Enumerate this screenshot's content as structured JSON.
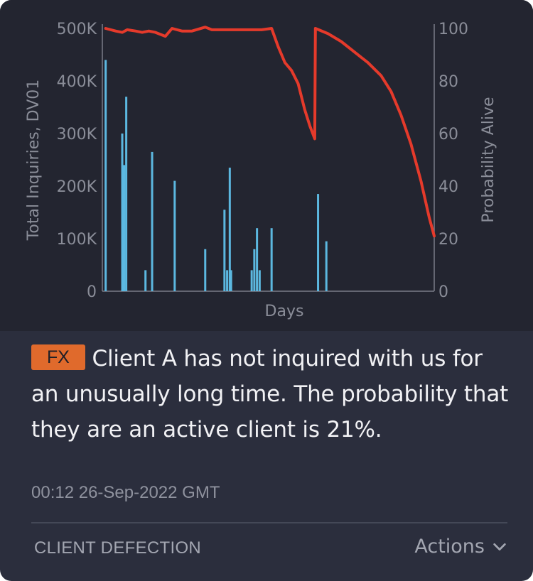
{
  "chart_data": {
    "type": "bar+line",
    "xlabel": "Days",
    "ylabel_left": "Total Inquiries, DV01",
    "ylabel_right": "Probability Alive",
    "y_left_ticks": [
      "500K",
      "400K",
      "300K",
      "200K",
      "100K",
      "0"
    ],
    "y_right_ticks": [
      "100",
      "80",
      "60",
      "40",
      "20",
      "0"
    ],
    "y_left_range": [
      0,
      500000
    ],
    "y_right_range": [
      0,
      100
    ],
    "x_range": [
      0,
      100
    ],
    "bars_series": {
      "color": "#5cb8e0",
      "points": [
        {
          "x": 1.0,
          "y": 440000
        },
        {
          "x": 6.0,
          "y": 300000
        },
        {
          "x": 6.6,
          "y": 240000
        },
        {
          "x": 7.2,
          "y": 370000
        },
        {
          "x": 13.0,
          "y": 40000
        },
        {
          "x": 15.0,
          "y": 265000
        },
        {
          "x": 21.8,
          "y": 210000
        },
        {
          "x": 31.0,
          "y": 80000
        },
        {
          "x": 36.8,
          "y": 155000
        },
        {
          "x": 37.6,
          "y": 40000
        },
        {
          "x": 38.4,
          "y": 235000
        },
        {
          "x": 38.8,
          "y": 40000
        },
        {
          "x": 45.0,
          "y": 40000
        },
        {
          "x": 45.8,
          "y": 80000
        },
        {
          "x": 46.6,
          "y": 120000
        },
        {
          "x": 47.4,
          "y": 40000
        },
        {
          "x": 51.0,
          "y": 120000
        },
        {
          "x": 65.0,
          "y": 185000
        },
        {
          "x": 67.5,
          "y": 95000
        }
      ]
    },
    "line_series": {
      "color": "#e53a2b",
      "points": [
        {
          "x": 1,
          "y": 100
        },
        {
          "x": 4,
          "y": 99
        },
        {
          "x": 6,
          "y": 98.5
        },
        {
          "x": 7.5,
          "y": 99.5
        },
        {
          "x": 10,
          "y": 99
        },
        {
          "x": 12,
          "y": 98.5
        },
        {
          "x": 14,
          "y": 99
        },
        {
          "x": 16,
          "y": 98.5
        },
        {
          "x": 19,
          "y": 97
        },
        {
          "x": 21,
          "y": 100
        },
        {
          "x": 24,
          "y": 99
        },
        {
          "x": 27,
          "y": 99
        },
        {
          "x": 31,
          "y": 100.5
        },
        {
          "x": 33,
          "y": 99.5
        },
        {
          "x": 36,
          "y": 99.5
        },
        {
          "x": 40,
          "y": 99.5
        },
        {
          "x": 45,
          "y": 99.5
        },
        {
          "x": 48,
          "y": 99.5
        },
        {
          "x": 51,
          "y": 100
        },
        {
          "x": 53,
          "y": 93
        },
        {
          "x": 55,
          "y": 87
        },
        {
          "x": 57,
          "y": 84
        },
        {
          "x": 59,
          "y": 79
        },
        {
          "x": 61,
          "y": 69
        },
        {
          "x": 62.5,
          "y": 63
        },
        {
          "x": 64,
          "y": 58
        },
        {
          "x": 64.2,
          "y": 100
        },
        {
          "x": 68,
          "y": 98
        },
        {
          "x": 72,
          "y": 95
        },
        {
          "x": 76,
          "y": 91
        },
        {
          "x": 80,
          "y": 87
        },
        {
          "x": 84,
          "y": 82
        },
        {
          "x": 87,
          "y": 76
        },
        {
          "x": 90,
          "y": 67
        },
        {
          "x": 93,
          "y": 56
        },
        {
          "x": 96,
          "y": 42
        },
        {
          "x": 98.5,
          "y": 28
        },
        {
          "x": 100,
          "y": 21
        }
      ]
    },
    "grid": false
  },
  "alert": {
    "badge": "FX",
    "message": "Client A has not inquired with us for an unusually long time. The probability that they are an active client is 21%.",
    "timestamp": "00:12 26-Sep-2022 GMT",
    "category": "CLIENT DEFECTION",
    "actions_label": "Actions",
    "actions_icon": "chevron-down-icon",
    "badge_color": "#e06a2c"
  }
}
